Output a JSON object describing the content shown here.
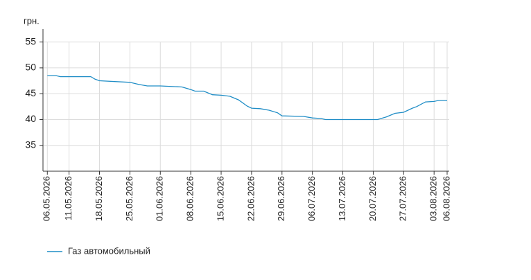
{
  "chart_data": {
    "type": "line",
    "y_label": "грн.",
    "x": [
      "06.05.2026",
      "08.05.2026",
      "09.05.2026",
      "16.05.2026",
      "17.05.2026",
      "18.05.2026",
      "25.05.2026",
      "27.05.2026",
      "29.05.2026",
      "01.06.2026",
      "06.06.2026",
      "08.06.2026",
      "09.06.2026",
      "11.06.2026",
      "13.06.2026",
      "15.06.2026",
      "17.06.2026",
      "19.06.2026",
      "21.06.2026",
      "22.06.2026",
      "24.06.2026",
      "26.06.2026",
      "28.06.2026",
      "29.06.2026",
      "04.07.2026",
      "06.07.2026",
      "08.07.2026",
      "09.07.2026",
      "20.07.2026",
      "21.07.2026",
      "23.07.2026",
      "25.07.2026",
      "27.07.2026",
      "29.07.2026",
      "30.07.2026",
      "01.08.2026",
      "03.08.2026",
      "04.08.2026",
      "06.08.2026"
    ],
    "series": [
      {
        "name": "Газ автомобильный",
        "color": "#1f8dc6",
        "values": [
          48.5,
          48.5,
          48.3,
          48.3,
          47.8,
          47.5,
          47.2,
          46.8,
          46.5,
          46.5,
          46.3,
          45.8,
          45.5,
          45.5,
          44.8,
          44.7,
          44.5,
          43.8,
          42.6,
          42.2,
          42.1,
          41.8,
          41.3,
          40.7,
          40.6,
          40.3,
          40.2,
          40.0,
          40.0,
          40.0,
          40.5,
          41.2,
          41.4,
          42.2,
          42.5,
          43.4,
          43.5,
          43.7,
          43.7
        ]
      }
    ],
    "xlim": [
      "05.05.2026",
      "06.08.2026"
    ],
    "xticks": [
      "06.05.2026",
      "11.05.2026",
      "18.05.2026",
      "25.05.2026",
      "01.06.2026",
      "08.06.2026",
      "15.06.2026",
      "22.06.2026",
      "29.06.2026",
      "06.07.2026",
      "13.07.2026",
      "20.07.2026",
      "27.07.2026",
      "03.08.2026",
      "06.08.2026"
    ],
    "ylim": [
      30,
      57.5
    ],
    "yticks": [
      35,
      40,
      45,
      50,
      55
    ],
    "grid": true
  }
}
